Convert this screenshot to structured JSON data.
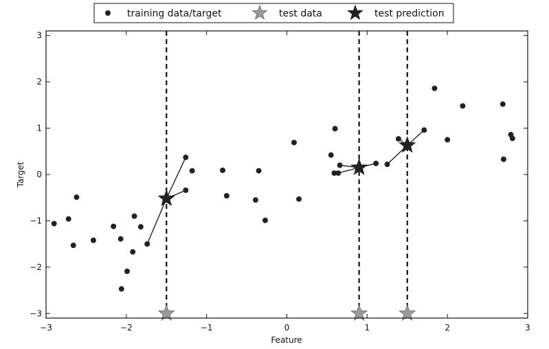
{
  "chart_data": {
    "type": "scatter",
    "xlabel": "Feature",
    "ylabel": "Target",
    "xlim": [
      -3,
      3
    ],
    "ylim": [
      -3.1,
      3.1
    ],
    "xticks": [
      -3,
      -2,
      -1,
      0,
      1,
      2,
      3
    ],
    "yticks": [
      -3,
      -2,
      -1,
      0,
      1,
      2,
      3
    ],
    "xtick_labels": [
      "−3",
      "−2",
      "−1",
      "0",
      "1",
      "2",
      "3"
    ],
    "ytick_labels": [
      "−3",
      "−2",
      "−1",
      "0",
      "1",
      "2",
      "3"
    ],
    "grid": false,
    "legend_position": "top-center",
    "legend": [
      {
        "label": "training data/target",
        "marker": "circle",
        "color": "#222222"
      },
      {
        "label": "test data",
        "marker": "star",
        "color": "#9a9a9a"
      },
      {
        "label": "test prediction",
        "marker": "star",
        "color": "#222222"
      }
    ],
    "training_data": {
      "name": "training data/target",
      "x": [
        -2.9,
        -2.72,
        -2.66,
        -2.62,
        -2.41,
        -2.16,
        -2.07,
        -2.06,
        -1.99,
        -1.92,
        -1.9,
        -1.82,
        -1.74,
        -1.26,
        -1.26,
        -1.18,
        -0.8,
        -0.75,
        -0.39,
        -0.35,
        -0.27,
        0.09,
        0.15,
        0.55,
        0.59,
        0.6,
        0.64,
        0.66,
        1.11,
        1.25,
        1.39,
        1.71,
        1.84,
        2.0,
        2.19,
        2.69,
        2.7,
        2.79,
        2.81
      ],
      "y": [
        -1.06,
        -0.96,
        -1.53,
        -0.49,
        -1.42,
        -1.12,
        -1.39,
        -2.47,
        -2.09,
        -1.67,
        -0.9,
        -1.13,
        -1.5,
        0.37,
        -0.34,
        0.08,
        0.09,
        -0.46,
        -0.55,
        0.08,
        -0.99,
        0.69,
        -0.53,
        0.42,
        0.03,
        0.99,
        0.03,
        0.2,
        0.24,
        0.22,
        0.77,
        0.96,
        1.86,
        0.75,
        1.48,
        1.52,
        0.33,
        0.86,
        0.78
      ]
    },
    "test_data": {
      "name": "test data",
      "x": [
        -1.5,
        0.9,
        1.5
      ],
      "y": [
        -3.0,
        -3.0,
        -3.0
      ]
    },
    "test_prediction": {
      "name": "test prediction",
      "x": [
        -1.5,
        0.9,
        1.5
      ],
      "y": [
        -0.52,
        0.15,
        0.63
      ]
    },
    "neighbor_lines": [
      {
        "from_x": -1.5,
        "from_y": -0.52,
        "to_x": -1.74,
        "to_y": -1.5
      },
      {
        "from_x": -1.5,
        "from_y": -0.52,
        "to_x": -1.26,
        "to_y": 0.37
      },
      {
        "from_x": -1.5,
        "from_y": -0.52,
        "to_x": -1.26,
        "to_y": -0.34
      },
      {
        "from_x": 0.9,
        "from_y": 0.15,
        "to_x": 0.64,
        "to_y": 0.03
      },
      {
        "from_x": 0.9,
        "from_y": 0.15,
        "to_x": 0.66,
        "to_y": 0.2
      },
      {
        "from_x": 0.9,
        "from_y": 0.15,
        "to_x": 1.11,
        "to_y": 0.24
      },
      {
        "from_x": 1.5,
        "from_y": 0.63,
        "to_x": 1.25,
        "to_y": 0.22
      },
      {
        "from_x": 1.5,
        "from_y": 0.63,
        "to_x": 1.39,
        "to_y": 0.77
      },
      {
        "from_x": 1.5,
        "from_y": 0.63,
        "to_x": 1.71,
        "to_y": 0.96
      }
    ],
    "vertical_lines_x": [
      -1.5,
      0.9,
      1.5
    ]
  }
}
